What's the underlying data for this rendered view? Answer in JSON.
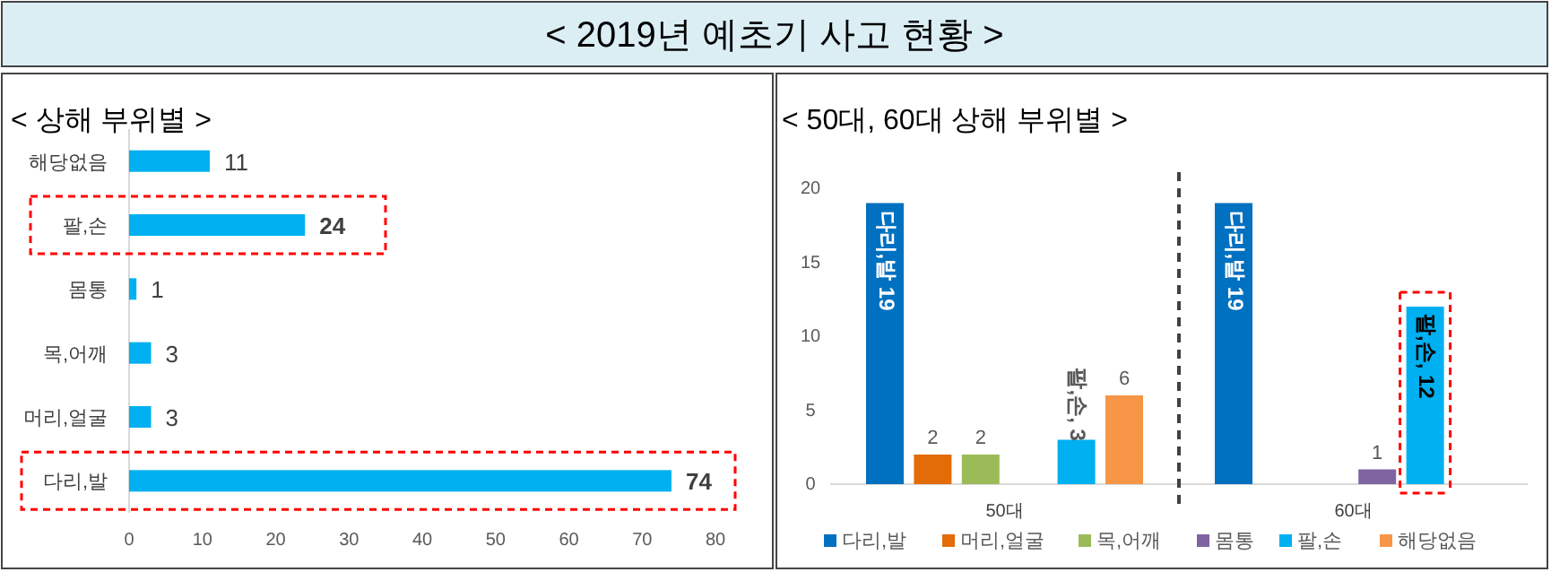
{
  "chart_data": [
    {
      "type": "bar",
      "title": "< 2019년 예초기 사고 현황 >",
      "subtitle": "< 상해 부위별 >",
      "orientation": "horizontal",
      "categories": [
        "해당없음",
        "팔,손",
        "몸통",
        "목,어깨",
        "머리,얼굴",
        "다리,발"
      ],
      "values": [
        11,
        24,
        1,
        3,
        3,
        74
      ],
      "color": "#00b0f0",
      "xlim": [
        0,
        80
      ],
      "xticks": [
        0,
        10,
        20,
        30,
        40,
        50,
        60,
        70,
        80
      ],
      "data_labels": true,
      "grid": false
    },
    {
      "type": "bar",
      "title": "< 50대, 60대 상해 부위별 >",
      "categories": [
        "50대",
        "60대"
      ],
      "series": [
        {
          "name": "다리,발",
          "color": "#0070c0",
          "values": [
            19,
            19
          ],
          "value_labels": [
            "다리,발 19",
            "다리,발 19"
          ]
        },
        {
          "name": "머리,얼굴",
          "color": "#e36c09",
          "values": [
            2,
            null
          ],
          "value_labels": [
            "2",
            null
          ]
        },
        {
          "name": "목,어깨",
          "color": "#9bbb59",
          "values": [
            2,
            null
          ],
          "value_labels": [
            "2",
            null
          ]
        },
        {
          "name": "몸통",
          "color": "#8064a2",
          "values": [
            null,
            1
          ],
          "value_labels": [
            null,
            "1"
          ]
        },
        {
          "name": "팔,손",
          "color": "#00b0f0",
          "values": [
            3,
            12
          ],
          "value_labels": [
            "팔,손, 3",
            "팔,손, 12"
          ]
        },
        {
          "name": "해당없음",
          "color": "#f79646",
          "values": [
            6,
            null
          ],
          "value_labels": [
            "6",
            null
          ]
        }
      ],
      "ylim": [
        0,
        20
      ],
      "yticks": [
        0,
        5,
        10,
        15,
        20
      ],
      "grid": false,
      "legend": "bottom"
    }
  ]
}
